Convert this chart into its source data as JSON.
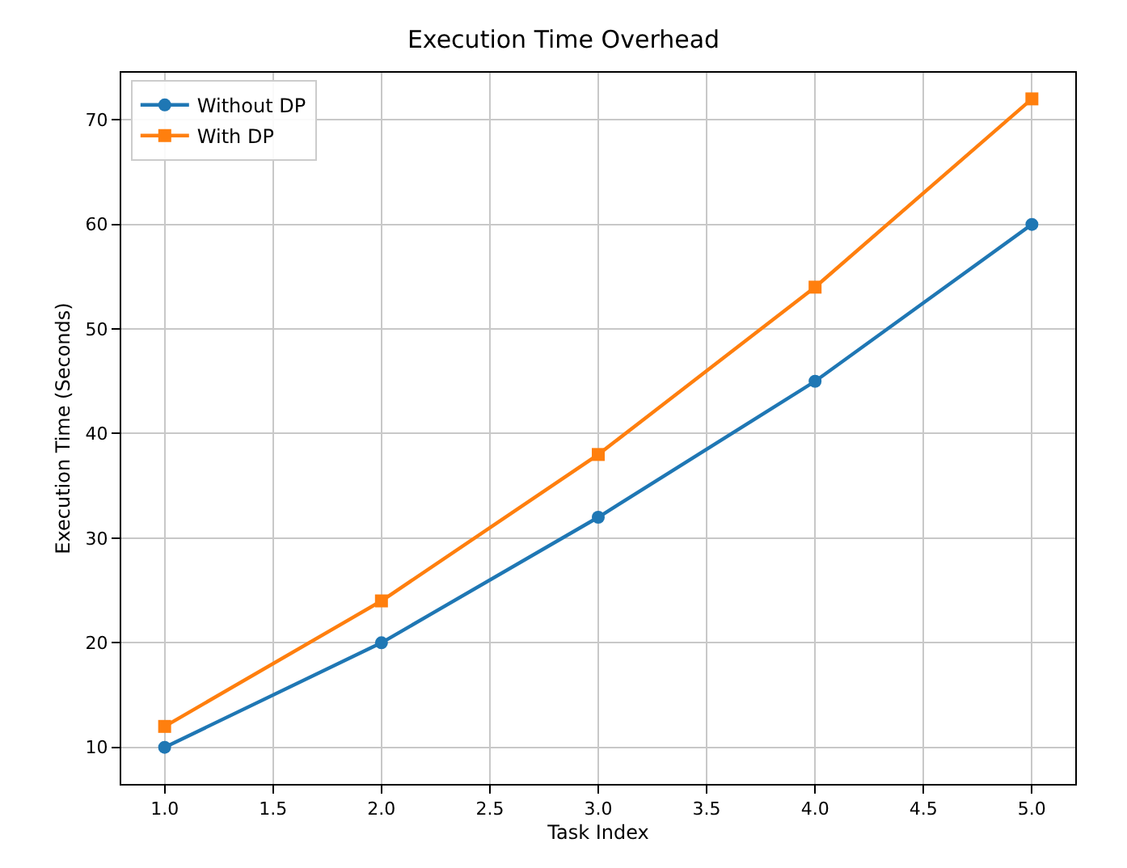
{
  "chart_data": {
    "type": "line",
    "title": "Execution Time Overhead",
    "xlabel": "Task Index",
    "ylabel": "Execution Time (Seconds)",
    "x": [
      1,
      2,
      3,
      4,
      5
    ],
    "series": [
      {
        "name": "Without DP",
        "color": "#1f77b4",
        "marker": "circle",
        "values": [
          10,
          20,
          32,
          45,
          60
        ]
      },
      {
        "name": "With DP",
        "color": "#ff7f0e",
        "marker": "square",
        "values": [
          12,
          24,
          38,
          54,
          72
        ]
      }
    ],
    "xlim": [
      0.8,
      5.2
    ],
    "xticks": [
      {
        "value": 1,
        "label": "1.0"
      },
      {
        "value": 1.5,
        "label": "1.5"
      },
      {
        "value": 2,
        "label": "2.0"
      },
      {
        "value": 2.5,
        "label": "2.5"
      },
      {
        "value": 3,
        "label": "3.0"
      },
      {
        "value": 3.5,
        "label": "3.5"
      },
      {
        "value": 4,
        "label": "4.0"
      },
      {
        "value": 4.5,
        "label": "4.5"
      },
      {
        "value": 5,
        "label": "5.0"
      }
    ],
    "ylim": [
      6.5,
      74.5
    ],
    "yticks": [
      10,
      20,
      30,
      40,
      50,
      60,
      70
    ],
    "grid": true,
    "legend": "top left",
    "line_style": "solid"
  }
}
